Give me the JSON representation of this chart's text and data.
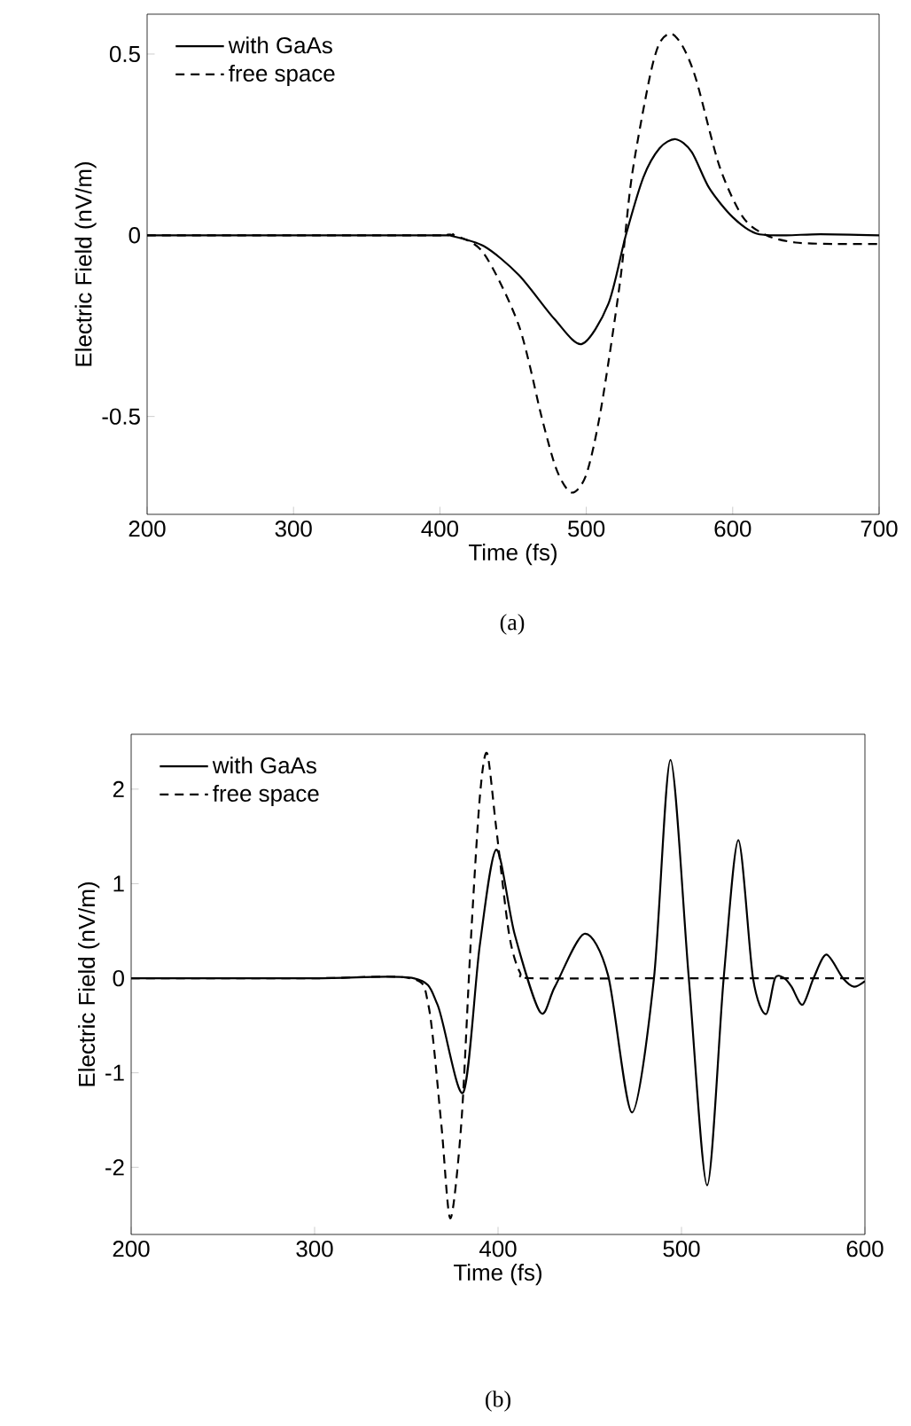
{
  "chart_data": [
    {
      "type": "line",
      "xlabel": "Time (fs)",
      "ylabel": "Electric Field (nV/m)",
      "annotations": [
        "(a)"
      ],
      "xlim": [
        200,
        700
      ],
      "ylim": [
        -0.77,
        0.61
      ],
      "xticks": [
        200,
        300,
        400,
        500,
        600,
        700
      ],
      "yticks": [
        -0.5,
        0,
        0.5
      ],
      "grid": false,
      "legend": "top left",
      "series": [
        {
          "name": "with GaAs",
          "color": "#000000",
          "line_style": "solid",
          "x": [
            200,
            300,
            400,
            406,
            430,
            454,
            478,
            497,
            515,
            527,
            539,
            550,
            561,
            572,
            584,
            600,
            616,
            636,
            660,
            700
          ],
          "values": [
            0,
            0,
            0,
            0,
            -0.03,
            -0.11,
            -0.23,
            -0.3,
            -0.19,
            0,
            0.16,
            0.24,
            0.265,
            0.23,
            0.13,
            0.05,
            0.005,
            0,
            0.003,
            0
          ]
        },
        {
          "name": "free space",
          "color": "#000000",
          "line_style": "dashed",
          "x": [
            200,
            300,
            400,
            410,
            430,
            454,
            470,
            480,
            490,
            500,
            510,
            523,
            531,
            543,
            550,
            558,
            566,
            575,
            591,
            607,
            623,
            643,
            670,
            700
          ],
          "values": [
            0,
            0,
            0,
            0,
            -0.05,
            -0.25,
            -0.51,
            -0.65,
            -0.71,
            -0.66,
            -0.48,
            -0.13,
            0.16,
            0.43,
            0.53,
            0.556,
            0.52,
            0.43,
            0.19,
            0.05,
            0,
            -0.02,
            -0.024,
            -0.024
          ]
        }
      ]
    },
    {
      "type": "line",
      "xlabel": "Time (fs)",
      "ylabel": "Electric Field (nV/m)",
      "annotations": [
        "(b)"
      ],
      "xlim": [
        200,
        600
      ],
      "ylim": [
        -2.71,
        2.58
      ],
      "xticks": [
        200,
        300,
        400,
        500,
        600
      ],
      "yticks": [
        -2,
        -1,
        0,
        1,
        2
      ],
      "grid": false,
      "legend": "top left",
      "series": [
        {
          "name": "with GaAs",
          "color": "#000000",
          "line_style": "solid",
          "x": [
            200,
            300,
            354,
            367,
            381,
            390,
            399,
            409,
            423,
            431,
            447,
            460,
            473,
            485,
            494,
            504,
            514,
            523,
            531,
            539,
            546,
            551,
            556,
            560,
            566,
            572,
            579,
            588,
            594,
            600
          ],
          "values": [
            0,
            0,
            0,
            -0.28,
            -1.21,
            0.34,
            1.36,
            0.47,
            -0.36,
            -0.09,
            0.47,
            0.03,
            -1.42,
            0,
            2.31,
            0,
            -2.19,
            0,
            1.46,
            0,
            -0.38,
            0,
            0,
            -0.09,
            -0.28,
            0,
            0.25,
            0,
            -0.09,
            -0.03
          ]
        },
        {
          "name": "free space",
          "color": "#000000",
          "line_style": "dashed",
          "x": [
            200,
            300,
            352,
            362,
            369,
            374,
            380,
            385,
            390,
            394,
            399,
            406,
            412,
            419,
            500,
            600
          ],
          "values": [
            0,
            0,
            0,
            -0.28,
            -1.53,
            -2.54,
            -1.53,
            0.34,
            1.9,
            2.38,
            1.59,
            0.47,
            0.06,
            0,
            0,
            0
          ]
        }
      ]
    }
  ]
}
